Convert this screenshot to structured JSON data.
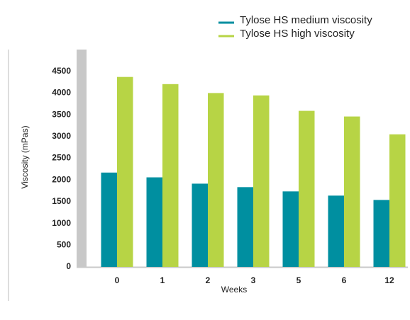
{
  "chart_data": {
    "type": "bar",
    "x_label": "Weeks",
    "y_label": "Viscosity (mPas)",
    "categories": [
      "0",
      "1",
      "2",
      "3",
      "5",
      "6",
      "12"
    ],
    "series": [
      {
        "name": "Tylose HS medium viscosity",
        "color": "#008fa0",
        "values": [
          2170,
          2060,
          1915,
          1835,
          1737,
          1640,
          1540
        ]
      },
      {
        "name": "Tylose HS high viscosity",
        "color": "#b7d445",
        "values": [
          4370,
          4205,
          4000,
          3945,
          3590,
          3460,
          3050
        ]
      }
    ],
    "ylim": [
      0,
      5000
    ],
    "yticks": [
      0,
      500,
      1000,
      1500,
      2000,
      2500,
      3000,
      3500,
      4000,
      4500
    ]
  }
}
